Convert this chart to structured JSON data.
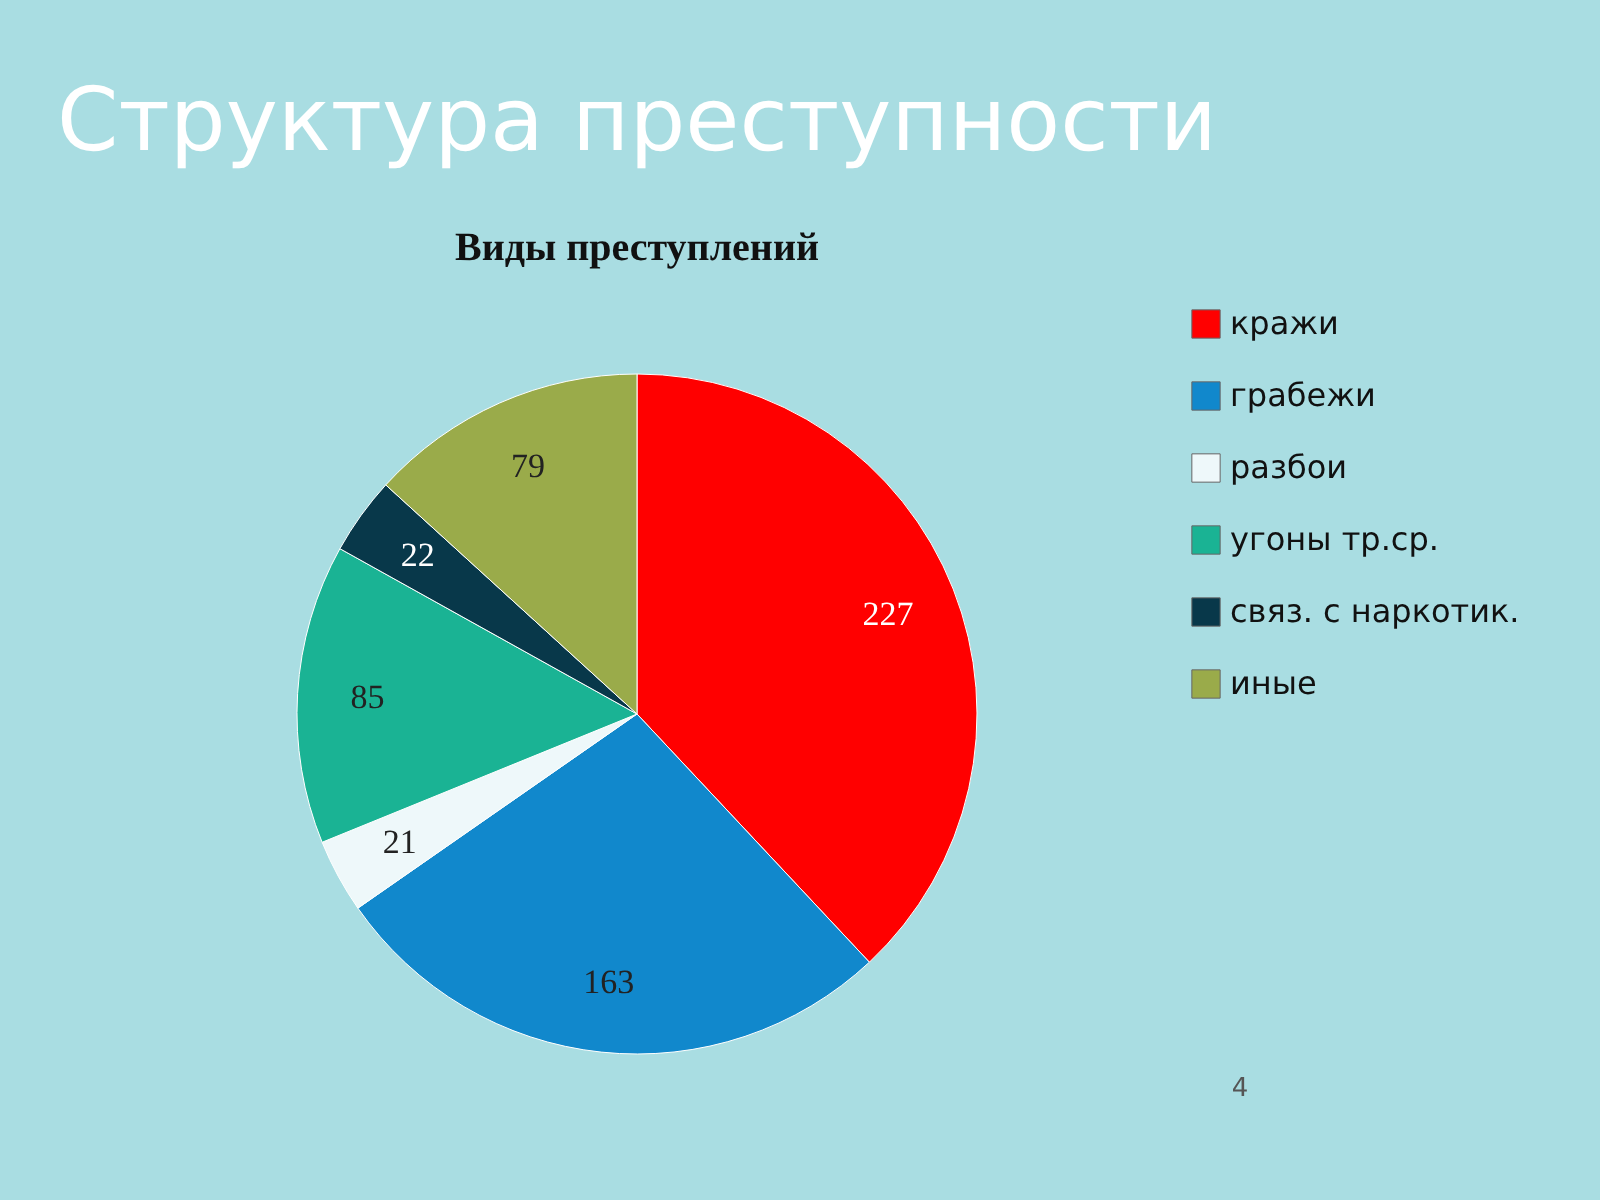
{
  "chart_data": {
    "type": "pie",
    "title": "Структура преступности",
    "subtitle": "Виды преступлений",
    "categories": [
      "кражи",
      "грабежи",
      "разбои",
      "угоны тр.ср.",
      "связ. с наркотик.",
      "иные"
    ],
    "values": [
      227,
      163,
      21,
      85,
      22,
      79
    ],
    "colors": [
      "#ff0000",
      "#1188cc",
      "#eef8fa",
      "#1ab394",
      "#08384a",
      "#9aab4a"
    ],
    "data_labels": true,
    "legend": "right",
    "annotations": [
      "4"
    ]
  }
}
